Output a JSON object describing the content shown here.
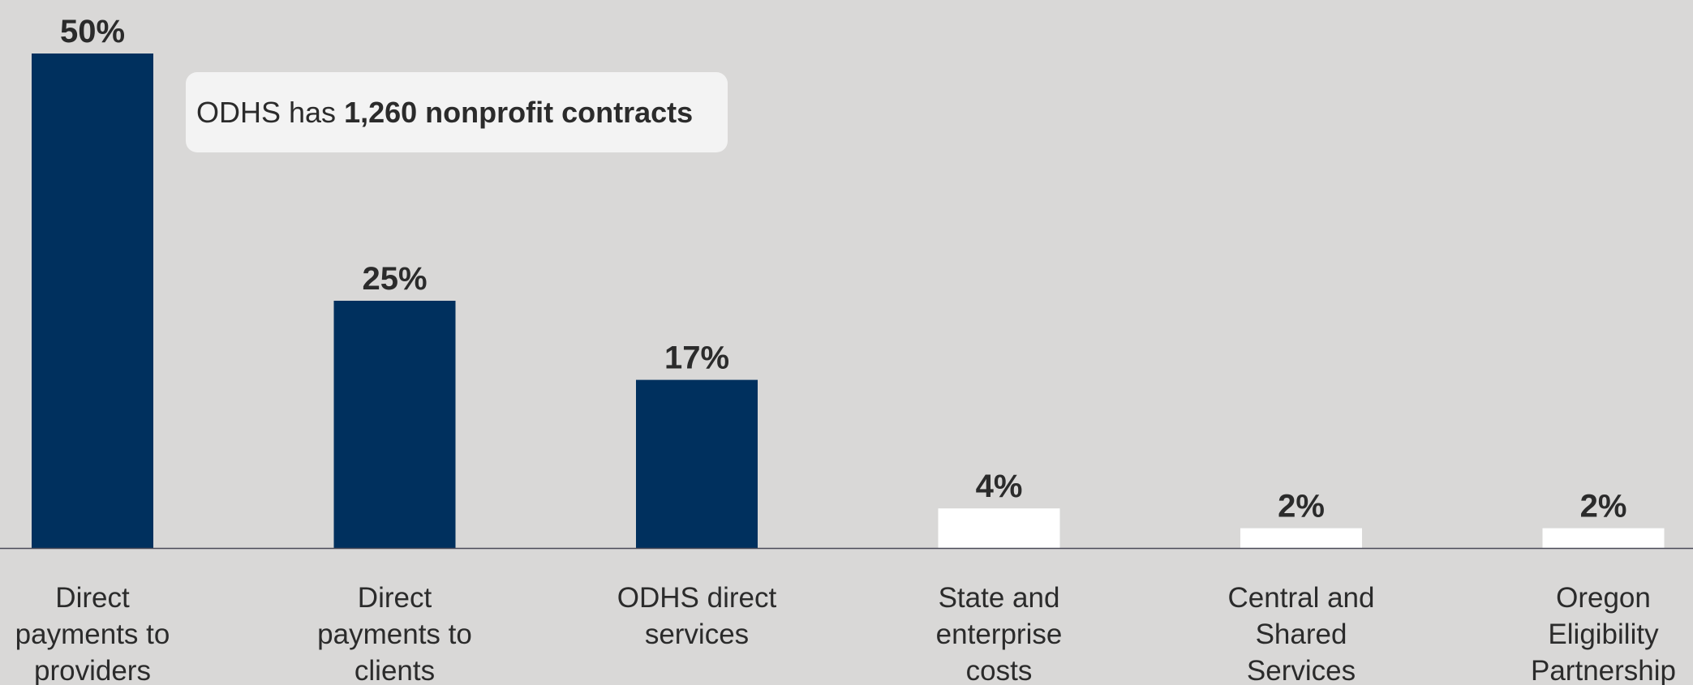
{
  "chart_data": {
    "type": "bar",
    "categories": [
      "Direct payments to providers",
      "Direct payments to clients",
      "ODHS direct services",
      "State and enterprise costs",
      "Central and Shared Services",
      "Oregon Eligibility Partnership"
    ],
    "category_lines": [
      [
        "Direct",
        "payments to",
        "providers"
      ],
      [
        "Direct",
        "payments to",
        "clients"
      ],
      [
        "ODHS direct",
        "services"
      ],
      [
        "State and",
        "enterprise",
        "costs"
      ],
      [
        "Central and",
        "Shared",
        "Services"
      ],
      [
        "Oregon",
        "Eligibility",
        "Partnership"
      ]
    ],
    "values": [
      50,
      25,
      17,
      4,
      2,
      2
    ],
    "data_labels": [
      "50%",
      "25%",
      "17%",
      "4%",
      "2%",
      "2%"
    ],
    "value_unit": "%",
    "highlighted": [
      true,
      true,
      true,
      false,
      false,
      false
    ],
    "title": "",
    "xlabel": "",
    "ylabel": "",
    "grid": false,
    "legend": "none"
  },
  "annotation": {
    "prefix": "ODHS has ",
    "bold": "1,260 nonprofit contracts"
  },
  "colors": {
    "background": "#d9d8d7",
    "bar_highlight": "#00305e",
    "bar_other": "#ffffff",
    "axis": "#4a4a58",
    "text": "#2b2b2b",
    "callout_bg": "#f3f3f3"
  }
}
